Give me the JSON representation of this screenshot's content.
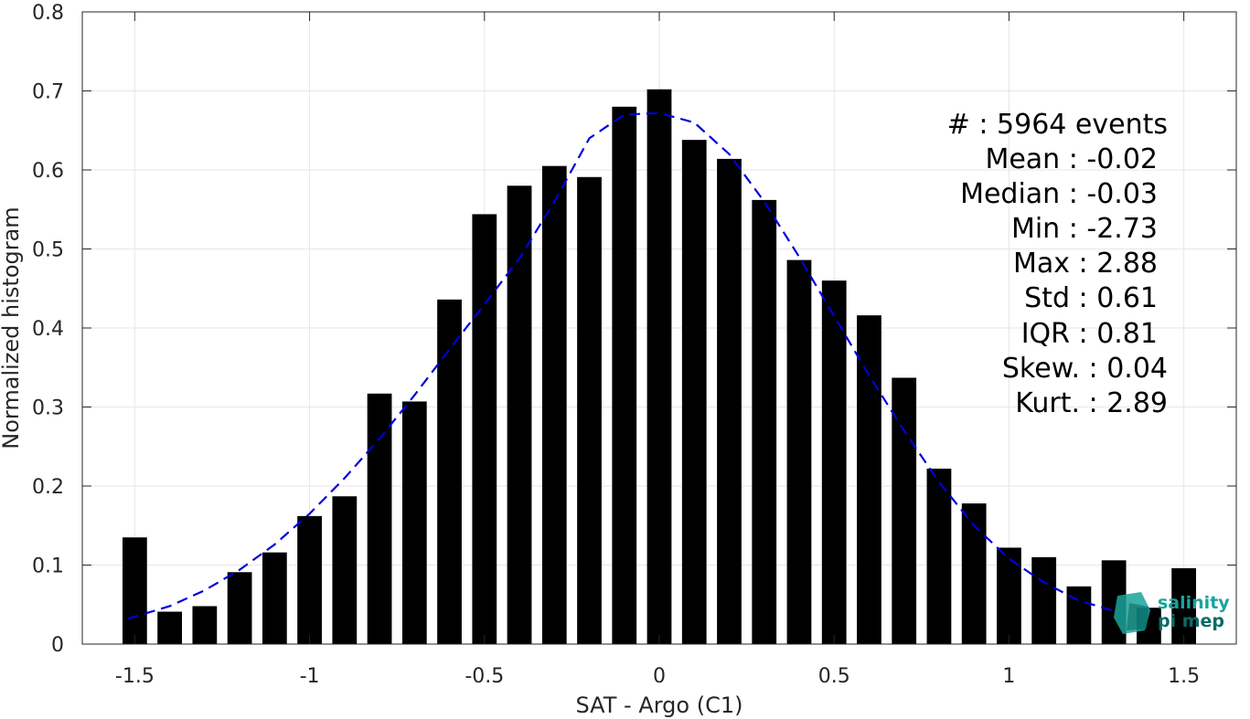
{
  "chart_data": {
    "type": "bar",
    "xlabel": "SAT - Argo (C1)",
    "ylabel": "Normalized histogram",
    "xlim": [
      -1.65,
      1.65
    ],
    "ylim": [
      0,
      0.8
    ],
    "xticks": [
      -1.5,
      -1,
      -0.5,
      0,
      0.5,
      1,
      1.5
    ],
    "xtick_labels": [
      "-1.5",
      "-1",
      "-0.5",
      "0",
      "0.5",
      "1",
      "1.5"
    ],
    "yticks": [
      0,
      0.1,
      0.2,
      0.3,
      0.4,
      0.5,
      0.6,
      0.7,
      0.8
    ],
    "ytick_labels": [
      "0",
      "0.1",
      "0.2",
      "0.3",
      "0.4",
      "0.5",
      "0.6",
      "0.7",
      "0.8"
    ],
    "grid": true,
    "bar_color": "#000000",
    "bar_width": 0.07,
    "x": [
      -1.5,
      -1.4,
      -1.3,
      -1.2,
      -1.1,
      -1.0,
      -0.9,
      -0.8,
      -0.7,
      -0.6,
      -0.5,
      -0.4,
      -0.3,
      -0.2,
      -0.1,
      0.0,
      0.1,
      0.2,
      0.3,
      0.4,
      0.5,
      0.6,
      0.7,
      0.8,
      0.9,
      1.0,
      1.1,
      1.2,
      1.3,
      1.4,
      1.5
    ],
    "values": [
      0.135,
      0.041,
      0.048,
      0.091,
      0.116,
      0.162,
      0.187,
      0.317,
      0.307,
      0.436,
      0.544,
      0.58,
      0.605,
      0.591,
      0.68,
      0.702,
      0.638,
      0.614,
      0.562,
      0.486,
      0.46,
      0.416,
      0.337,
      0.222,
      0.178,
      0.122,
      0.11,
      0.073,
      0.106,
      0.046,
      0.096
    ],
    "fit_curve": {
      "style": "dashed",
      "color": "#0000dd",
      "x": [
        -1.52,
        -1.4,
        -1.3,
        -1.2,
        -1.1,
        -1.0,
        -0.9,
        -0.8,
        -0.7,
        -0.6,
        -0.5,
        -0.4,
        -0.3,
        -0.2,
        -0.1,
        0.0,
        0.1,
        0.2,
        0.3,
        0.4,
        0.5,
        0.6,
        0.7,
        0.8,
        0.9,
        1.0,
        1.1,
        1.2,
        1.3
      ],
      "y": [
        0.032,
        0.048,
        0.068,
        0.094,
        0.126,
        0.165,
        0.21,
        0.26,
        0.315,
        0.373,
        0.43,
        0.488,
        0.56,
        0.64,
        0.67,
        0.672,
        0.66,
        0.62,
        0.56,
        0.49,
        0.415,
        0.34,
        0.27,
        0.205,
        0.15,
        0.108,
        0.078,
        0.055,
        0.042
      ]
    }
  },
  "stats": [
    {
      "text": "#  : 5964 events"
    },
    {
      "text": "Mean : -0.02"
    },
    {
      "text": "Median : -0.03"
    },
    {
      "text": "Min : -2.73"
    },
    {
      "text": "Max : 2.88"
    },
    {
      "text": "Std : 0.61"
    },
    {
      "text": "IQR : 0.81"
    },
    {
      "text": "Skew. : 0.04"
    },
    {
      "text": "Kurt. : 2.89"
    }
  ],
  "logo": {
    "line1": "salinity",
    "line2": "pi mep",
    "color": "#1aa39a",
    "shadow_color": "#0a6b66"
  }
}
